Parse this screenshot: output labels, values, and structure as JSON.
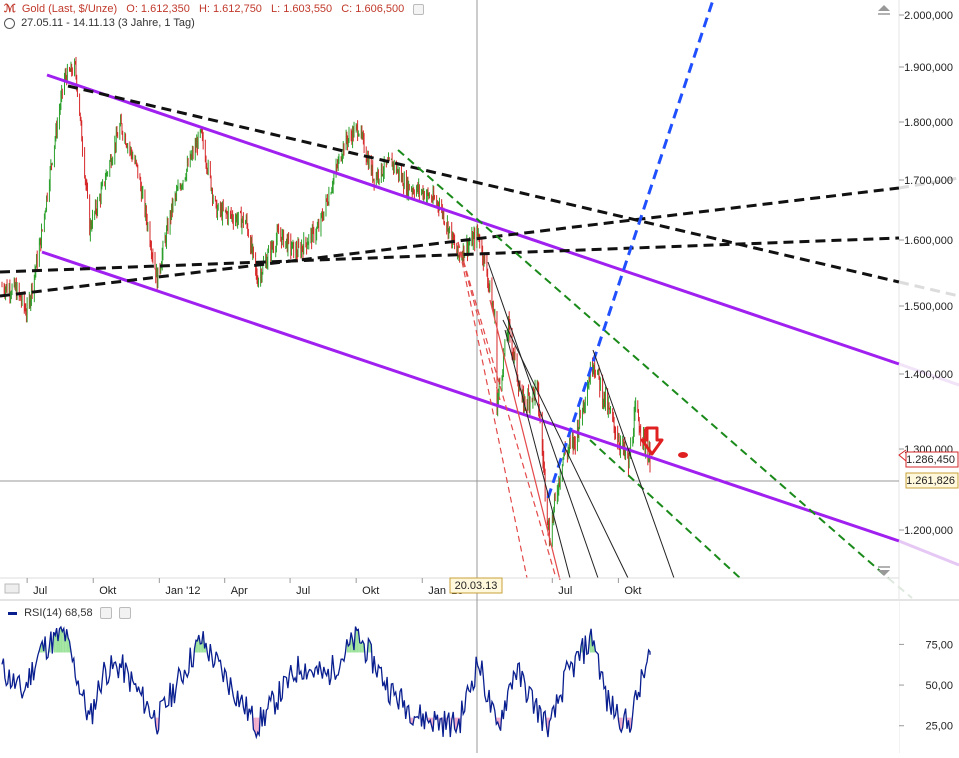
{
  "header": {
    "symbol_icon": "chart-symbol-icon",
    "title": "Gold (Last, $/Unze)",
    "open": "O: 1.612,350",
    "high": "H: 1.612,750",
    "low": "L: 1.603,550",
    "close": "C: 1.606,500",
    "range": "27.05.11 - 14.11.13 (3 Jahre, 1 Tag)"
  },
  "crosshair": {
    "date_label": "20.03.13",
    "price_label": "1.261,826"
  },
  "last_price_label": "1.286,450",
  "rsi": {
    "name": "RSI(14)",
    "value": "68,58"
  },
  "colors": {
    "up": "#2ca02c",
    "down": "#d62728",
    "channel": "#a020f0",
    "fan_blue": "#1f4fff",
    "fan_green": "#1a8a1a",
    "rsi_line": "#0a1f8f"
  },
  "chart_data": [
    {
      "type": "line",
      "title": "Gold (Last, $/Unze)",
      "xlabel": "",
      "ylabel": "",
      "categories": [
        "Jul",
        "Okt",
        "Jan '12",
        "Apr",
        "Jul",
        "Okt",
        "Jan '13",
        "Jul",
        "Okt"
      ],
      "yticks": [
        "1.200,000",
        "1.300,000",
        "1.400,000",
        "1.500,000",
        "1.600,000",
        "1.700,000",
        "1.800,000",
        "1.900,000",
        "2.000,000"
      ],
      "ylim": [
        1150,
        2020
      ],
      "grid": false,
      "series": [
        {
          "x": [
            "2011-05-27",
            "2011-06-15",
            "2011-07-01",
            "2011-07-20",
            "2011-08-05",
            "2011-08-22",
            "2011-09-06",
            "2011-09-26",
            "2011-10-10",
            "2011-11-08",
            "2011-12-01",
            "2011-12-29",
            "2012-01-20",
            "2012-02-28",
            "2012-03-20",
            "2012-05-01",
            "2012-05-16",
            "2012-06-15",
            "2012-07-10",
            "2012-08-10",
            "2012-09-15",
            "2012-10-04",
            "2012-10-25",
            "2012-11-20",
            "2012-12-10",
            "2013-01-02",
            "2013-01-25",
            "2013-02-20",
            "2013-03-20",
            "2013-04-01",
            "2013-04-12",
            "2013-04-15",
            "2013-05-01",
            "2013-05-20",
            "2013-06-10",
            "2013-06-27",
            "2013-07-15",
            "2013-08-01",
            "2013-08-27",
            "2013-09-10",
            "2013-09-25",
            "2013-10-15",
            "2013-10-25",
            "2013-11-14"
          ],
          "y": [
            1530,
            1525,
            1490,
            1600,
            1740,
            1880,
            1900,
            1620,
            1670,
            1795,
            1720,
            1540,
            1660,
            1780,
            1650,
            1630,
            1540,
            1610,
            1580,
            1620,
            1765,
            1790,
            1705,
            1730,
            1690,
            1680,
            1660,
            1575,
            1610,
            1550,
            1480,
            1360,
            1470,
            1360,
            1380,
            1190,
            1290,
            1310,
            1420,
            1370,
            1330,
            1280,
            1350,
            1286
          ]
        }
      ],
      "annotations": [
        "20.03.13",
        "1.286,450",
        "1.261,826"
      ]
    },
    {
      "type": "line",
      "title": "RSI(14)",
      "xlabel": "",
      "ylabel": "",
      "yticks": [
        "25,00",
        "50,00",
        "75,00"
      ],
      "ylim": [
        15,
        90
      ],
      "series": [
        {
          "name": "RSI(14)",
          "x": [
            "2011-05-27",
            "2011-06-25",
            "2011-07-20",
            "2011-08-22",
            "2011-09-26",
            "2011-10-15",
            "2011-11-08",
            "2011-12-29",
            "2012-02-28",
            "2012-05-16",
            "2012-07-15",
            "2012-08-20",
            "2012-10-04",
            "2012-11-20",
            "2012-12-30",
            "2013-02-20",
            "2013-03-20",
            "2013-04-15",
            "2013-05-10",
            "2013-06-27",
            "2013-07-20",
            "2013-08-27",
            "2013-09-15",
            "2013-10-15",
            "2013-11-14"
          ],
          "y": [
            60,
            45,
            72,
            82,
            28,
            58,
            62,
            28,
            78,
            25,
            62,
            55,
            80,
            45,
            30,
            25,
            65,
            22,
            60,
            22,
            55,
            80,
            40,
            25,
            68.58
          ]
        }
      ]
    }
  ]
}
